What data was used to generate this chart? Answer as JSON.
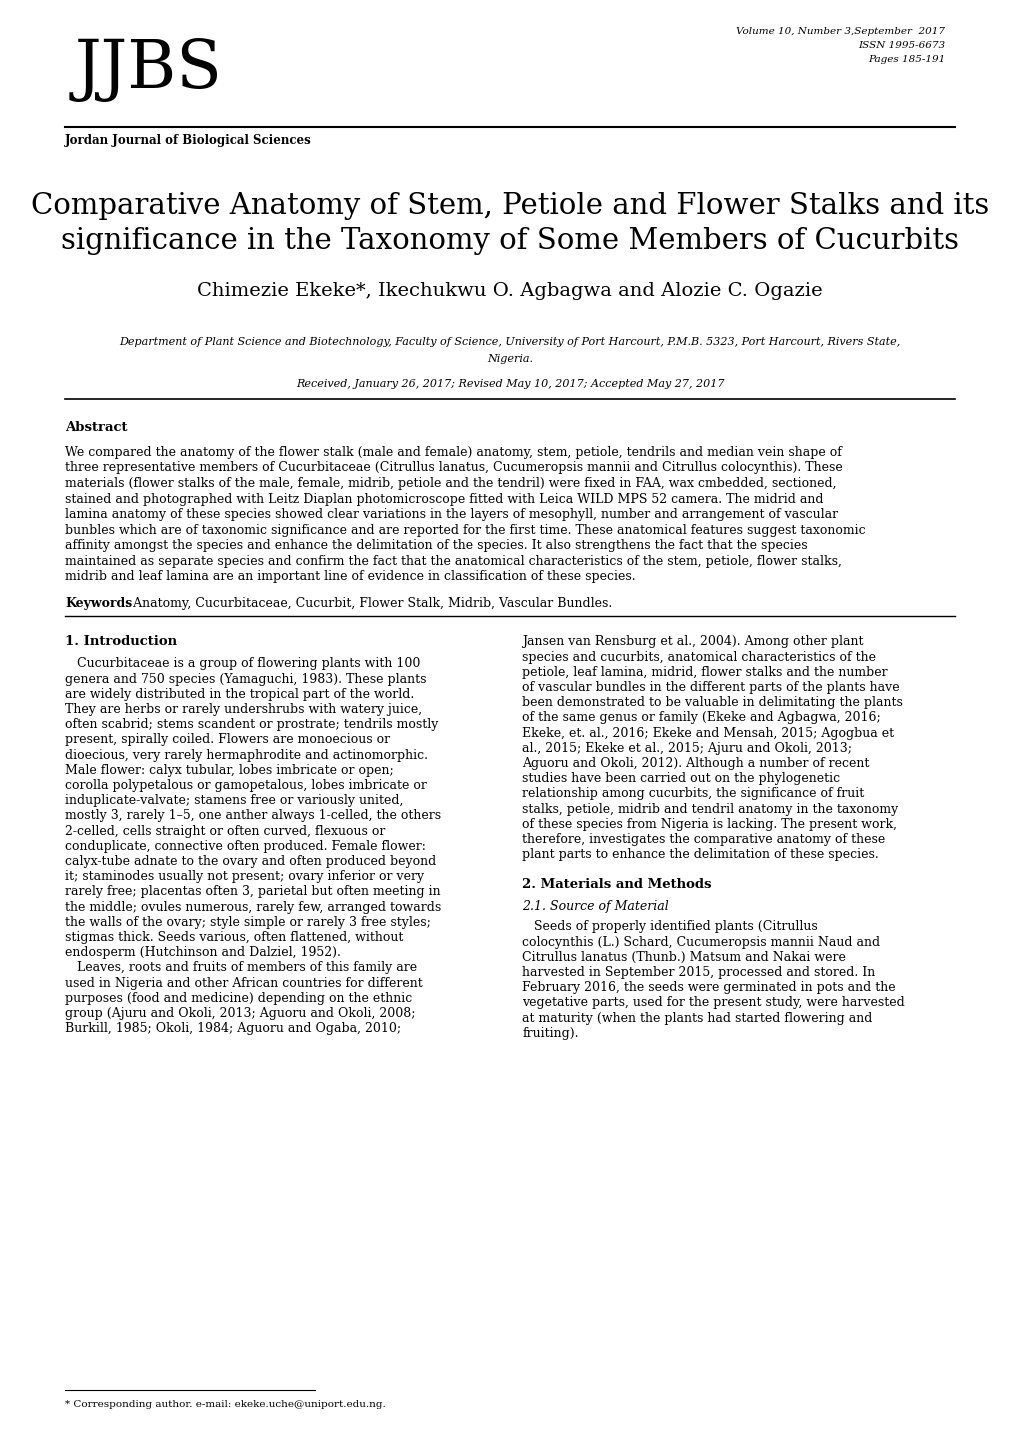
{
  "background_color": "#ffffff",
  "journal_abbrev": "JJBS",
  "journal_name": "Jordan Journal of Biological Sciences",
  "volume_info": "Volume 10, Number 3,September  2017",
  "issn": "ISSN 1995-6673",
  "pages": "Pages 185-191",
  "title_line1": "Comparative Anatomy of Stem, Petiole and Flower Stalks and its",
  "title_line2": "significance in the Taxonomy of Some Members of Cucurbits",
  "authors": "Chimezie Ekeke*, Ikechukwu O. Agbagwa and Alozie C. Ogazie",
  "affiliation_line1": "Department of Plant Science and Biotechnology, Faculty of Science, University of Port Harcourt, P.M.B. 5323, Port Harcourt, Rivers State,",
  "affiliation_line2": "Nigeria.",
  "received": "Received, January 26, 2017; Revised May 10, 2017; Accepted May 27, 2017",
  "abstract_heading": "Abstract",
  "keywords_label": "Keywords",
  "keywords_text": ": Anatomy, Cucurbitaceae, Cucurbit, Flower Stalk, Midrib, Vascular Bundles.",
  "section1_heading": "1. Introduction",
  "section2_heading": "2. Materials and Methods",
  "section21_heading": "2.1. Source of Material",
  "footnote": "* Corresponding author. e-mail: ekeke.uche@uniport.edu.ng."
}
